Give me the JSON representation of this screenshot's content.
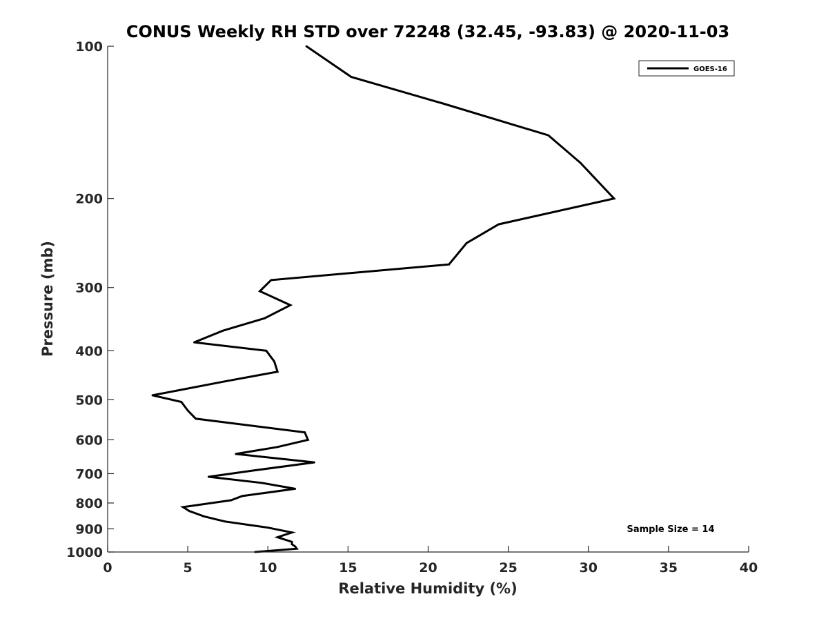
{
  "chart_data": {
    "type": "line",
    "title": "CONUS Weekly RH STD over 72248 (32.45, -93.83) @ 2020-11-03",
    "xlabel": "Relative Humidity (%)",
    "ylabel": "Pressure (mb)",
    "xlim": [
      0,
      40
    ],
    "ylim": [
      100,
      1000
    ],
    "y_scale": "log",
    "y_direction": "reversed",
    "grid": false,
    "legend_position": "top-right",
    "x_ticks": [
      "0",
      "5",
      "10",
      "15",
      "20",
      "25",
      "30",
      "35",
      "40"
    ],
    "y_ticks": [
      "100",
      "200",
      "300",
      "400",
      "500",
      "600",
      "700",
      "800",
      "900",
      "1000"
    ],
    "annotation": "Sample Size = 14",
    "series": [
      {
        "name": "GOES-16",
        "color": "#000000",
        "x": [
          12.4,
          15.2,
          21.0,
          27.5,
          29.5,
          31.6,
          24.4,
          22.4,
          21.3,
          10.2,
          9.5,
          11.4,
          9.8,
          7.2,
          5.4,
          9.9,
          10.4,
          10.6,
          7.3,
          2.8,
          4.6,
          5.0,
          5.5,
          12.3,
          12.5,
          10.6,
          8.0,
          12.9,
          9.1,
          6.3,
          9.6,
          11.7,
          8.4,
          7.7,
          4.7,
          5.1,
          6.0,
          7.3,
          10.0,
          11.5,
          10.6,
          11.5,
          11.5,
          11.7,
          11.8,
          9.2
        ],
        "y": [
          100,
          115,
          130,
          150,
          170,
          200,
          225,
          245,
          270,
          290,
          305,
          325,
          345,
          365,
          385,
          400,
          420,
          440,
          460,
          490,
          505,
          525,
          545,
          580,
          600,
          620,
          640,
          665,
          690,
          710,
          730,
          750,
          775,
          790,
          815,
          830,
          850,
          870,
          895,
          915,
          935,
          955,
          965,
          975,
          985,
          1000
        ]
      }
    ]
  }
}
